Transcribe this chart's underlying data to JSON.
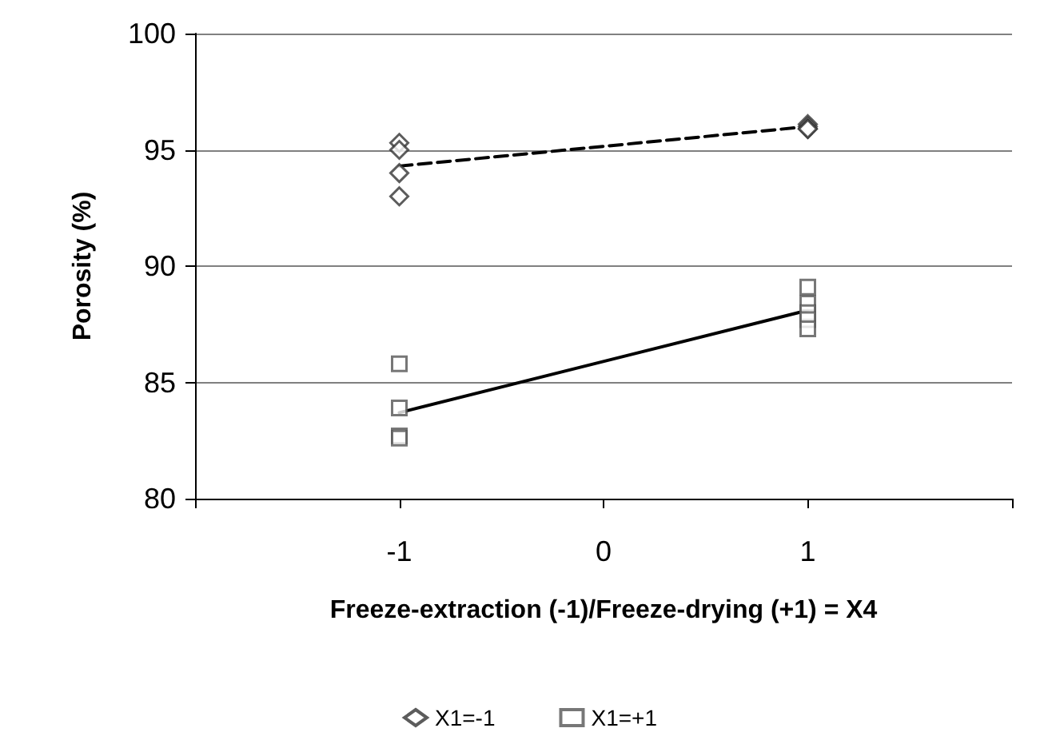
{
  "chart_data": {
    "type": "scatter",
    "xlabel": "Freeze-extraction (-1)/Freeze-drying (+1) = X4",
    "ylabel": "Porosity (%)",
    "categories": [
      null,
      "-1",
      "0",
      "1",
      null
    ],
    "ylim": [
      80,
      100
    ],
    "yticks": [
      80,
      85,
      90,
      95,
      100
    ],
    "grid": "y",
    "legend": "bottom",
    "series": [
      {
        "name": "X1=-1",
        "type": "scatter",
        "marker": "diamond",
        "color": "#333333",
        "x": [
          "-1",
          "-1",
          "-1",
          "-1",
          "1",
          "1",
          "1",
          "1"
        ],
        "values": [
          95.3,
          95.0,
          94.0,
          93.0,
          96.1,
          96.0,
          95.9,
          95.9
        ]
      },
      {
        "name": "X1=+1",
        "type": "scatter",
        "marker": "square",
        "color": "#555555",
        "x": [
          "-1",
          "-1",
          "-1",
          "-1",
          "1",
          "1",
          "1",
          "1",
          "1"
        ],
        "values": [
          85.8,
          83.9,
          82.7,
          82.6,
          89.1,
          88.4,
          88.0,
          87.7,
          87.3
        ]
      },
      {
        "type": "line",
        "marker": "none",
        "line_style": "dashed",
        "color": "#000000",
        "x": [
          "-1",
          "1"
        ],
        "values": [
          94.3,
          96.0
        ]
      },
      {
        "type": "line",
        "marker": "none",
        "line_style": "solid",
        "color": "#000000",
        "x": [
          "-1",
          "1"
        ],
        "values": [
          83.7,
          88.1
        ]
      }
    ]
  }
}
